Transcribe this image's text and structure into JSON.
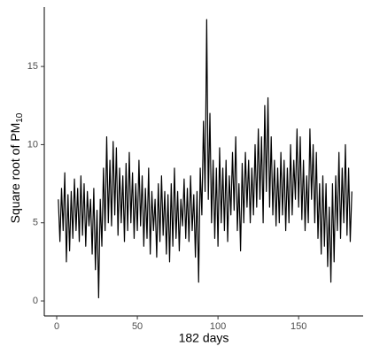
{
  "chart_data": {
    "type": "line",
    "xlabel": "182 days",
    "ylabel": "Square root of PM",
    "ylabel_subscript": "10",
    "x": [
      1,
      2,
      3,
      4,
      5,
      6,
      7,
      8,
      9,
      10,
      11,
      12,
      13,
      14,
      15,
      16,
      17,
      18,
      19,
      20,
      21,
      22,
      23,
      24,
      25,
      26,
      27,
      28,
      29,
      30,
      31,
      32,
      33,
      34,
      35,
      36,
      37,
      38,
      39,
      40,
      41,
      42,
      43,
      44,
      45,
      46,
      47,
      48,
      49,
      50,
      51,
      52,
      53,
      54,
      55,
      56,
      57,
      58,
      59,
      60,
      61,
      62,
      63,
      64,
      65,
      66,
      67,
      68,
      69,
      70,
      71,
      72,
      73,
      74,
      75,
      76,
      77,
      78,
      79,
      80,
      81,
      82,
      83,
      84,
      85,
      86,
      87,
      88,
      89,
      90,
      91,
      92,
      93,
      94,
      95,
      96,
      97,
      98,
      99,
      100,
      101,
      102,
      103,
      104,
      105,
      106,
      107,
      108,
      109,
      110,
      111,
      112,
      113,
      114,
      115,
      116,
      117,
      118,
      119,
      120,
      121,
      122,
      123,
      124,
      125,
      126,
      127,
      128,
      129,
      130,
      131,
      132,
      133,
      134,
      135,
      136,
      137,
      138,
      139,
      140,
      141,
      142,
      143,
      144,
      145,
      146,
      147,
      148,
      149,
      150,
      151,
      152,
      153,
      154,
      155,
      156,
      157,
      158,
      159,
      160,
      161,
      162,
      163,
      164,
      165,
      166,
      167,
      168,
      169,
      170,
      171,
      172,
      173,
      174,
      175,
      176,
      177,
      178,
      179,
      180,
      181,
      182,
      183
    ],
    "series": [
      {
        "color": "#000000",
        "values": [
          6.5,
          3.8,
          7.2,
          4.5,
          8.2,
          2.5,
          6.8,
          3.2,
          7.0,
          4.0,
          7.8,
          4.5,
          7.2,
          3.8,
          8.0,
          4.2,
          7.5,
          3.5,
          7.0,
          4.8,
          6.5,
          3.0,
          7.2,
          2.0,
          5.8,
          0.2,
          6.5,
          3.5,
          8.5,
          4.5,
          10.5,
          5.0,
          9.0,
          4.8,
          10.2,
          5.5,
          9.8,
          4.2,
          8.5,
          5.0,
          8.0,
          3.8,
          8.8,
          4.5,
          9.5,
          5.0,
          8.2,
          4.0,
          7.5,
          4.5,
          9.0,
          4.8,
          8.0,
          3.5,
          7.2,
          4.0,
          8.5,
          3.0,
          7.0,
          4.5,
          6.5,
          2.8,
          7.5,
          3.8,
          8.0,
          4.2,
          7.0,
          3.0,
          6.8,
          2.5,
          7.5,
          3.5,
          8.5,
          4.0,
          7.0,
          3.2,
          6.5,
          4.8,
          7.8,
          4.0,
          7.2,
          3.8,
          8.0,
          4.5,
          6.8,
          2.8,
          7.0,
          1.2,
          8.5,
          5.5,
          11.5,
          7.0,
          18.0,
          6.5,
          12.0,
          5.0,
          9.0,
          4.0,
          8.5,
          3.5,
          9.8,
          5.0,
          8.5,
          4.5,
          9.0,
          3.8,
          8.0,
          5.5,
          9.5,
          5.8,
          10.5,
          4.5,
          7.5,
          3.2,
          8.8,
          5.0,
          9.5,
          6.0,
          9.0,
          5.0,
          8.5,
          5.5,
          10.0,
          6.0,
          11.0,
          6.5,
          10.5,
          5.0,
          12.5,
          7.0,
          13.0,
          6.0,
          10.5,
          5.5,
          9.0,
          4.8,
          8.5,
          5.0,
          9.5,
          5.5,
          9.0,
          4.5,
          8.5,
          5.0,
          10.0,
          5.5,
          9.0,
          6.5,
          11.0,
          6.0,
          10.5,
          5.2,
          9.0,
          4.5,
          8.0,
          5.0,
          11.0,
          6.5,
          10.0,
          5.0,
          9.5,
          4.0,
          7.5,
          3.0,
          8.0,
          3.5,
          7.5,
          2.2,
          6.0,
          1.2,
          7.5,
          2.5,
          8.0,
          4.5,
          9.5,
          4.0,
          8.5,
          5.0,
          10.0,
          4.2,
          8.5,
          3.8,
          7.0
        ]
      }
    ],
    "xlim": [
      -7.7,
      190
    ],
    "xticks": [
      0,
      50,
      100,
      150
    ],
    "ylim": [
      -0.96,
      18.8
    ],
    "yticks": [
      0,
      5,
      10,
      15
    ],
    "grid": false
  }
}
